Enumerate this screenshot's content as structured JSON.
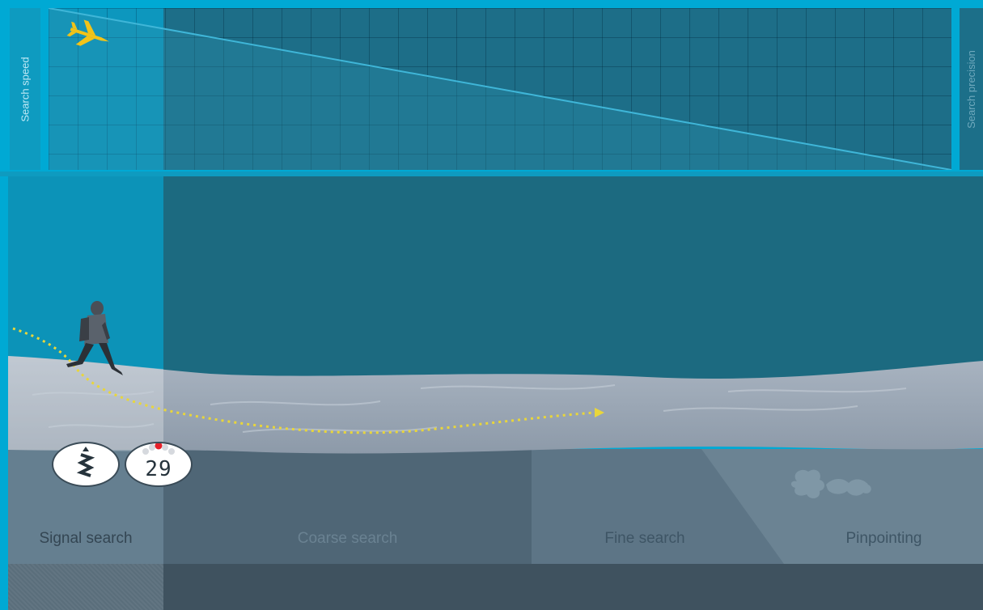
{
  "sidebar": {
    "left_label": "Search speed",
    "right_label": "Search precision"
  },
  "device": {
    "distance": "29",
    "antenna_icon": "antenna-zigzag-icon"
  },
  "phases": [
    {
      "label": "Signal search",
      "active": true
    },
    {
      "label": "Coarse search",
      "active": false
    },
    {
      "label": "Fine search",
      "active": false
    },
    {
      "label": "Pinpointing",
      "active": false
    }
  ],
  "colors": {
    "accent": "#00a9d4",
    "trail": "#e9d63a",
    "plane": "#f2c318",
    "indicator_red": "#e6202a"
  }
}
